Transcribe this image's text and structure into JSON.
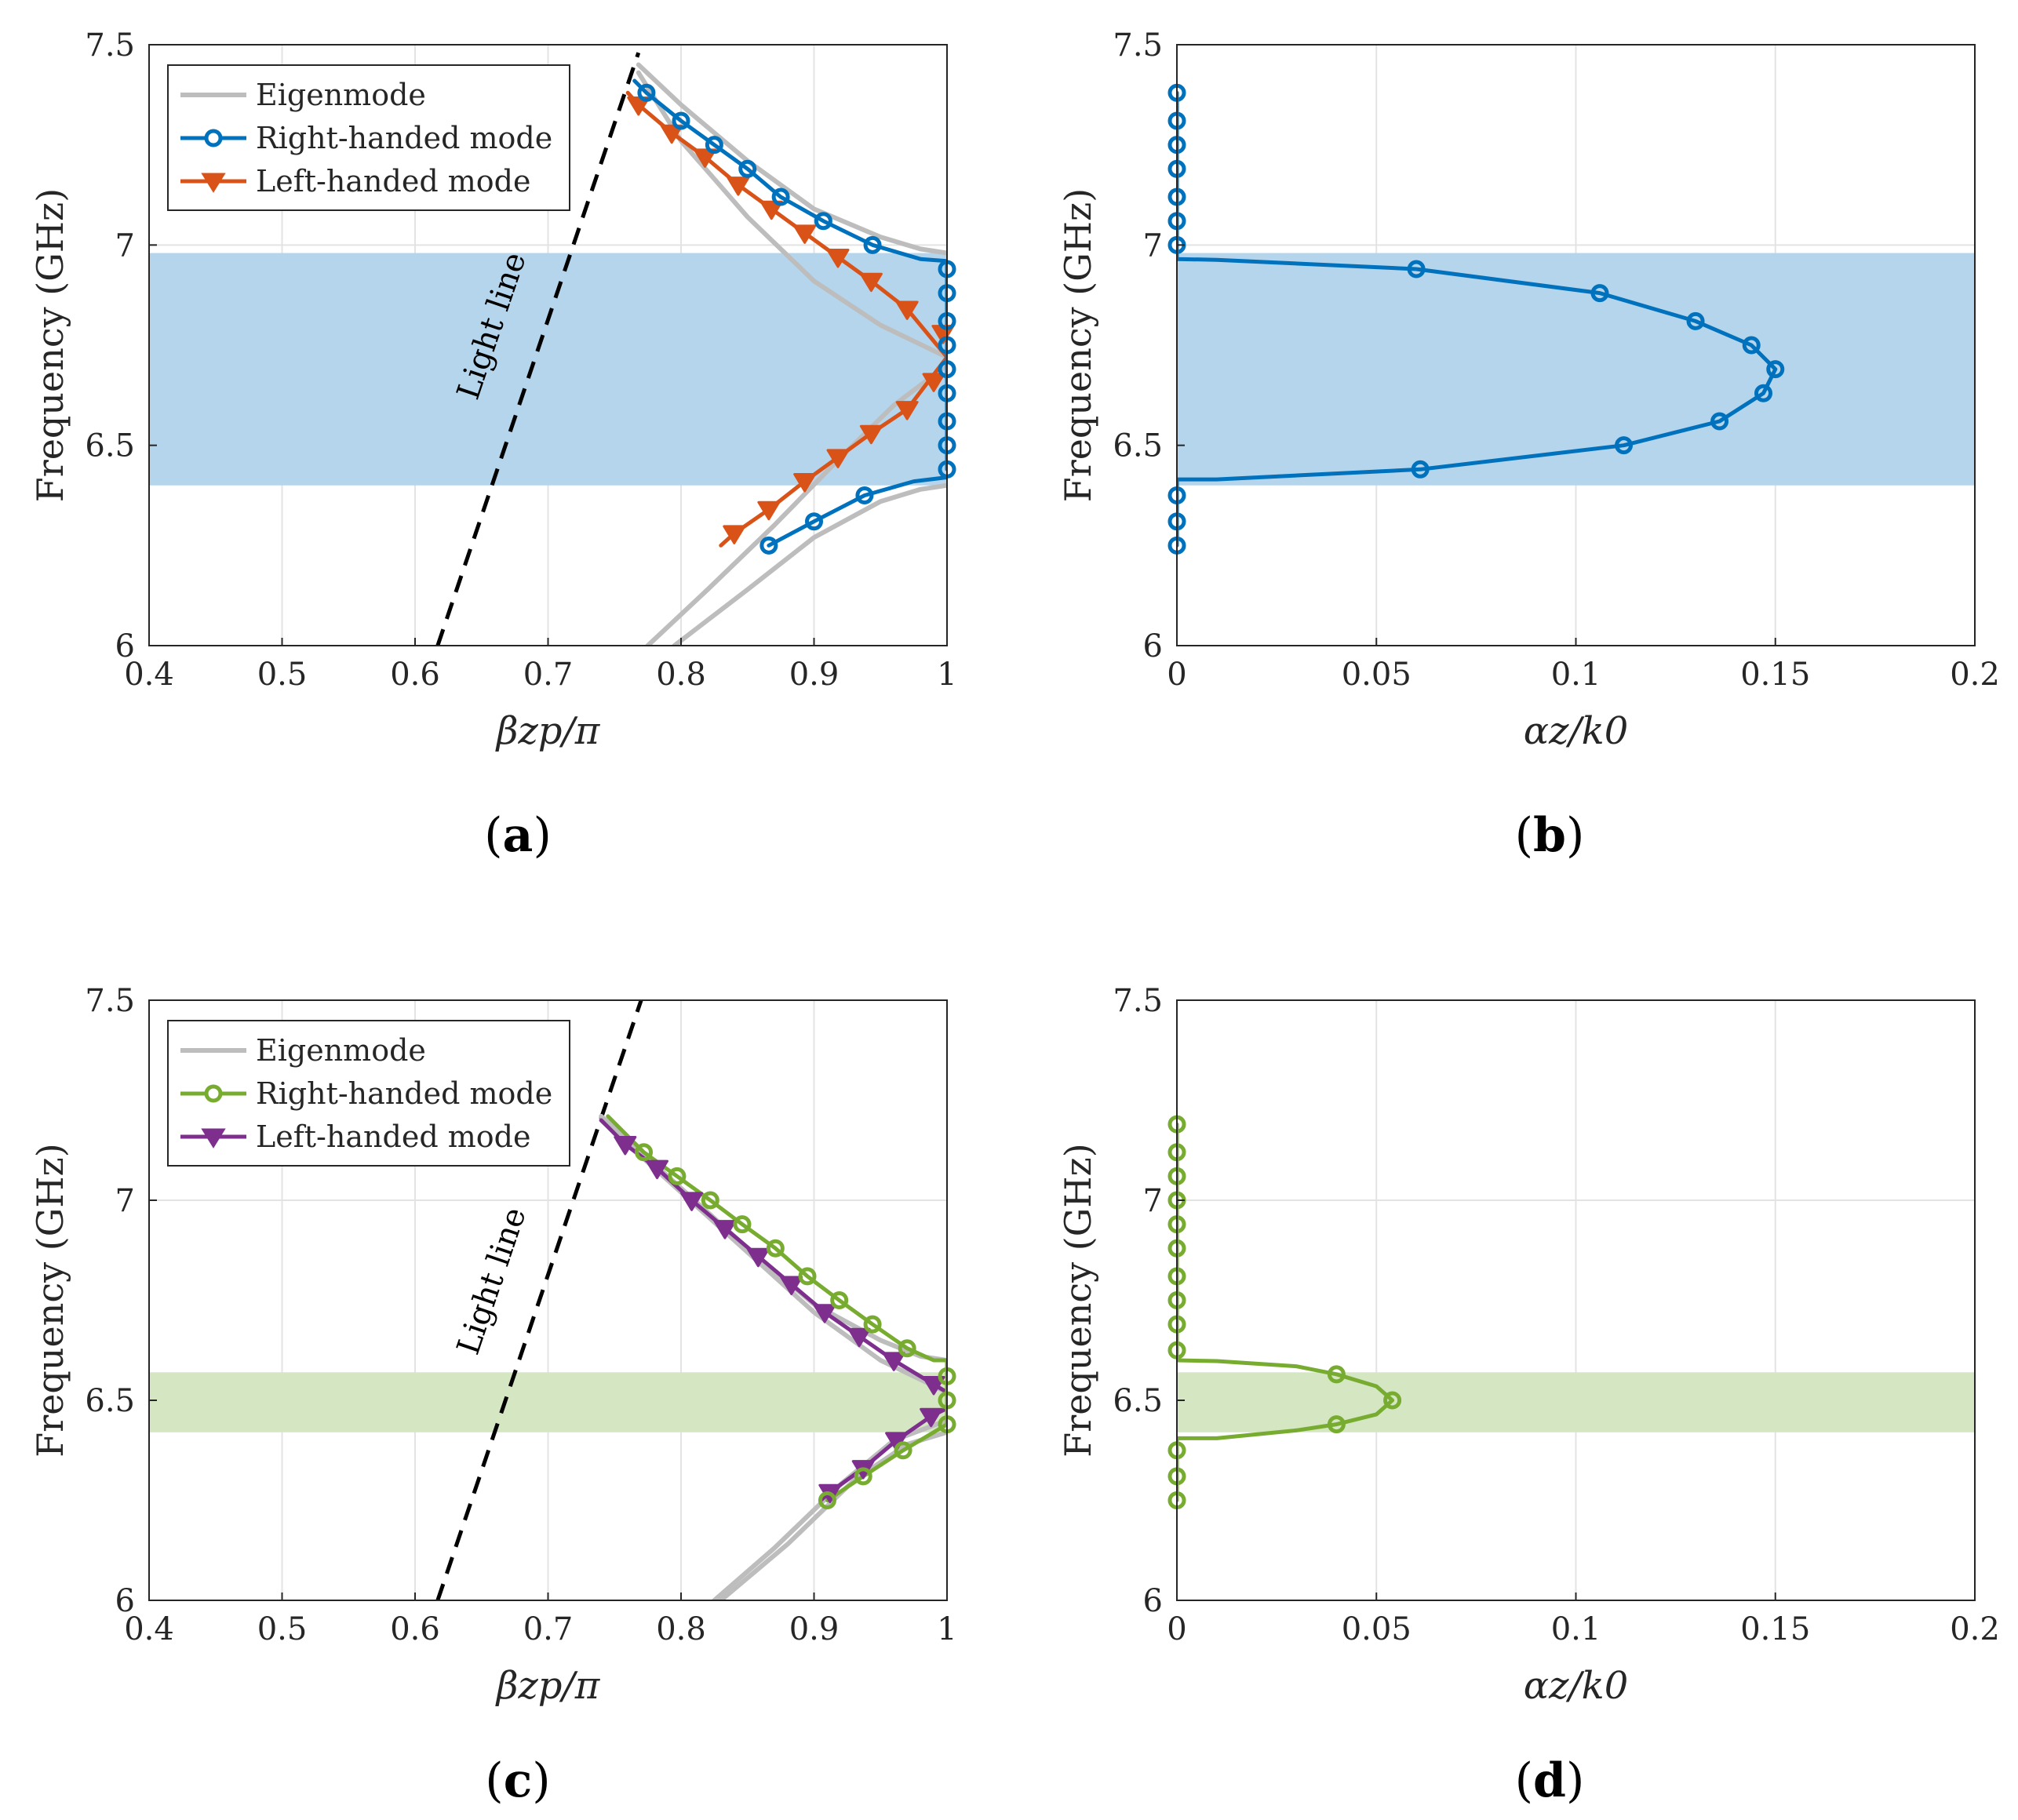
{
  "figure_captions": {
    "a": "a",
    "b": "b",
    "c": "c",
    "d": "d"
  },
  "chart_data": [
    {
      "id": "a",
      "type": "line",
      "xlabel": "βzp/π",
      "ylabel": "Frequency (GHz)",
      "xlim": [
        0.4,
        1.0
      ],
      "ylim": [
        6.0,
        7.5
      ],
      "xticks": [
        0.4,
        0.5,
        0.6,
        0.7,
        0.8,
        0.9,
        1.0
      ],
      "xtick_labels": [
        "0.4",
        "0.5",
        "0.6",
        "0.7",
        "0.8",
        "0.9",
        "1"
      ],
      "yticks": [
        6.0,
        6.5,
        7.0,
        7.5
      ],
      "ytick_labels": [
        "6",
        "6.5",
        "7",
        "7.5"
      ],
      "band": {
        "y0": 6.4,
        "y1": 6.98,
        "color": "#b4d5ec"
      },
      "light_line": {
        "points": [
          [
            0.617,
            6.0
          ],
          [
            0.768,
            7.48
          ]
        ],
        "label": "Light line"
      },
      "legend": {
        "position": "top-left",
        "entries": [
          {
            "name": "Eigenmode",
            "color": "#bdbdbd",
            "marker": "none"
          },
          {
            "name": "Right-handed mode",
            "color": "#0072bd",
            "marker": "circle"
          },
          {
            "name": "Left-handed mode",
            "color": "#d95319",
            "marker": "triangle-down"
          }
        ]
      },
      "series": [
        {
          "name": "Eigenmode",
          "role": "eigen",
          "color": "#bdbdbd",
          "x": [
            0.768,
            0.8,
            0.85,
            0.9,
            0.95,
            0.98,
            1.0
          ],
          "y": [
            7.45,
            7.35,
            7.21,
            7.09,
            7.02,
            6.99,
            6.98
          ]
        },
        {
          "name": "Eigenmode",
          "role": "eigen",
          "color": "#bdbdbd",
          "x": [
            0.768,
            0.8,
            0.85,
            0.9,
            0.95,
            1.0
          ],
          "y": [
            7.43,
            7.26,
            7.07,
            6.91,
            6.8,
            6.72
          ]
        },
        {
          "name": "Eigenmode",
          "role": "eigen",
          "color": "#bdbdbd",
          "x": [
            0.775,
            0.82,
            0.87,
            0.92,
            0.96,
            1.0
          ],
          "y": [
            6.0,
            6.14,
            6.3,
            6.47,
            6.6,
            6.7
          ]
        },
        {
          "name": "Eigenmode",
          "role": "eigen",
          "color": "#bdbdbd",
          "x": [
            0.795,
            0.85,
            0.9,
            0.95,
            0.98,
            1.0
          ],
          "y": [
            6.0,
            6.14,
            6.27,
            6.36,
            6.39,
            6.4
          ]
        },
        {
          "name": "Right-handed mode",
          "role": "rh",
          "color": "#0072bd",
          "marker": "circle",
          "x": [
            0.774,
            0.8,
            0.825,
            0.85,
            0.875,
            0.907,
            0.944,
            1.0,
            1.0,
            1.0,
            1.0,
            1.0,
            1.0,
            1.0,
            1.0,
            1.0
          ],
          "y": [
            7.38,
            7.31,
            7.25,
            7.19,
            7.12,
            7.06,
            7.0,
            6.94,
            6.88,
            6.81,
            6.75,
            6.69,
            6.63,
            6.56,
            6.5,
            6.44
          ],
          "line_x": [
            0.765,
            0.774,
            0.8,
            0.825,
            0.85,
            0.875,
            0.907,
            0.944,
            0.98,
            1.0,
            1.0
          ],
          "line_y": [
            7.41,
            7.38,
            7.31,
            7.25,
            7.19,
            7.12,
            7.06,
            7.0,
            6.965,
            6.96,
            6.44
          ]
        },
        {
          "name": "Right-handed mode",
          "role": "rh",
          "color": "#0072bd",
          "marker": "circle",
          "x": [
            0.866,
            0.9,
            0.938
          ],
          "y": [
            6.25,
            6.31,
            6.375
          ],
          "line_x": [
            0.866,
            0.9,
            0.938,
            0.975,
            1.0
          ],
          "line_y": [
            6.25,
            6.31,
            6.375,
            6.41,
            6.42
          ]
        },
        {
          "name": "Left-handed mode",
          "role": "lh",
          "color": "#d95319",
          "marker": "triangle-down",
          "x": [
            0.768,
            0.793,
            0.818,
            0.843,
            0.868,
            0.893,
            0.918,
            0.943,
            0.97,
            0.997
          ],
          "y": [
            7.35,
            7.28,
            7.22,
            7.15,
            7.09,
            7.03,
            6.97,
            6.91,
            6.84,
            6.78
          ],
          "line_x": [
            0.76,
            0.768,
            0.793,
            0.818,
            0.843,
            0.868,
            0.893,
            0.918,
            0.943,
            0.97,
            1.0
          ],
          "line_y": [
            7.38,
            7.35,
            7.28,
            7.22,
            7.15,
            7.09,
            7.03,
            6.97,
            6.91,
            6.84,
            6.72
          ]
        },
        {
          "name": "Left-handed mode",
          "role": "lh",
          "color": "#d95319",
          "marker": "triangle-down",
          "x": [
            0.84,
            0.866,
            0.893,
            0.918,
            0.943,
            0.97,
            0.99
          ],
          "y": [
            6.28,
            6.34,
            6.41,
            6.47,
            6.53,
            6.59,
            6.66
          ],
          "line_x": [
            0.83,
            0.84,
            0.866,
            0.893,
            0.918,
            0.943,
            0.97,
            1.0
          ],
          "line_y": [
            6.25,
            6.28,
            6.34,
            6.41,
            6.47,
            6.53,
            6.59,
            6.72
          ]
        }
      ]
    },
    {
      "id": "b",
      "type": "line",
      "xlabel": "αz/k0",
      "ylabel": "Frequency (GHz)",
      "xlim": [
        0,
        0.2
      ],
      "ylim": [
        6.0,
        7.5
      ],
      "xticks": [
        0,
        0.05,
        0.1,
        0.15,
        0.2
      ],
      "xtick_labels": [
        "0",
        "0.05",
        "0.1",
        "0.15",
        "0.2"
      ],
      "yticks": [
        6.0,
        6.5,
        7.0,
        7.5
      ],
      "ytick_labels": [
        "6",
        "6.5",
        "7",
        "7.5"
      ],
      "band": {
        "y0": 6.4,
        "y1": 6.98,
        "color": "#b4d5ec"
      },
      "series": [
        {
          "name": "Right-handed mode",
          "role": "rh",
          "color": "#0072bd",
          "marker": "circle",
          "x": [
            0,
            0,
            0,
            0,
            0,
            0,
            0,
            0.06,
            0.106,
            0.13,
            0.144,
            0.15,
            0.147,
            0.136,
            0.112,
            0.061,
            0,
            0,
            0
          ],
          "y": [
            7.38,
            7.31,
            7.25,
            7.19,
            7.12,
            7.06,
            7.0,
            6.94,
            6.88,
            6.81,
            6.75,
            6.69,
            6.63,
            6.56,
            6.5,
            6.44,
            6.375,
            6.31,
            6.25
          ],
          "line_x": [
            0,
            0,
            0.01,
            0.06,
            0.106,
            0.13,
            0.144,
            0.15,
            0.147,
            0.136,
            0.112,
            0.061,
            0.01,
            0,
            0
          ],
          "line_y": [
            7.38,
            6.965,
            6.963,
            6.94,
            6.88,
            6.81,
            6.75,
            6.69,
            6.63,
            6.56,
            6.5,
            6.44,
            6.415,
            6.415,
            6.25
          ]
        }
      ]
    },
    {
      "id": "c",
      "type": "line",
      "xlabel": "βzp/π",
      "ylabel": "Frequency (GHz)",
      "xlim": [
        0.4,
        1.0
      ],
      "ylim": [
        6.0,
        7.5
      ],
      "xticks": [
        0.4,
        0.5,
        0.6,
        0.7,
        0.8,
        0.9,
        1.0
      ],
      "xtick_labels": [
        "0.4",
        "0.5",
        "0.6",
        "0.7",
        "0.8",
        "0.9",
        "1"
      ],
      "yticks": [
        6.0,
        6.5,
        7.0,
        7.5
      ],
      "ytick_labels": [
        "6",
        "6.5",
        "7",
        "7.5"
      ],
      "band": {
        "y0": 6.42,
        "y1": 6.57,
        "color": "#d5e6c2"
      },
      "light_line": {
        "points": [
          [
            0.617,
            6.0
          ],
          [
            0.77,
            7.5
          ]
        ],
        "label": "Light line"
      },
      "legend": {
        "position": "top-left",
        "entries": [
          {
            "name": "Eigenmode",
            "color": "#bdbdbd",
            "marker": "none"
          },
          {
            "name": "Right-handed mode",
            "color": "#77ac30",
            "marker": "circle"
          },
          {
            "name": "Left-handed mode",
            "color": "#7e2f8e",
            "marker": "triangle-down"
          }
        ]
      },
      "series": [
        {
          "name": "Eigenmode",
          "role": "eigen",
          "color": "#bdbdbd",
          "x": [
            0.74,
            0.8,
            0.85,
            0.9,
            0.95,
            0.98,
            1.0
          ],
          "y": [
            7.21,
            7.03,
            6.88,
            6.74,
            6.65,
            6.61,
            6.6
          ]
        },
        {
          "name": "Eigenmode",
          "role": "eigen",
          "color": "#bdbdbd",
          "x": [
            0.74,
            0.8,
            0.85,
            0.9,
            0.95,
            1.0
          ],
          "y": [
            7.2,
            7.02,
            6.87,
            6.72,
            6.6,
            6.52
          ]
        },
        {
          "name": "Eigenmode",
          "role": "eigen",
          "color": "#bdbdbd",
          "x": [
            0.825,
            0.87,
            0.92,
            0.96,
            1.0
          ],
          "y": [
            6.0,
            6.13,
            6.29,
            6.4,
            6.45
          ]
        },
        {
          "name": "Eigenmode",
          "role": "eigen",
          "color": "#bdbdbd",
          "x": [
            0.83,
            0.88,
            0.93,
            0.97,
            1.0
          ],
          "y": [
            6.0,
            6.14,
            6.3,
            6.39,
            6.42
          ]
        },
        {
          "name": "Left-handed mode",
          "role": "lh",
          "color": "#7e2f8e",
          "marker": "triangle-down",
          "x": [
            0.758,
            0.782,
            0.808,
            0.833,
            0.858,
            0.883,
            0.908,
            0.934,
            0.96,
            0.99
          ],
          "y": [
            7.14,
            7.08,
            7.0,
            6.93,
            6.86,
            6.79,
            6.72,
            6.66,
            6.6,
            6.54
          ],
          "line_x": [
            0.74,
            0.758,
            0.782,
            0.808,
            0.833,
            0.858,
            0.883,
            0.908,
            0.934,
            0.96,
            0.99,
            1.0
          ],
          "line_y": [
            7.2,
            7.14,
            7.08,
            7.0,
            6.93,
            6.86,
            6.79,
            6.72,
            6.66,
            6.6,
            6.54,
            6.52
          ]
        },
        {
          "name": "Left-handed mode",
          "role": "lh",
          "color": "#7e2f8e",
          "marker": "triangle-down",
          "x": [
            0.912,
            0.937,
            0.962,
            0.988
          ],
          "y": [
            6.27,
            6.33,
            6.4,
            6.46
          ],
          "line_x": [
            0.905,
            0.912,
            0.937,
            0.962,
            0.988,
            1.0
          ],
          "line_y": [
            6.25,
            6.27,
            6.33,
            6.4,
            6.46,
            6.48
          ]
        },
        {
          "name": "Right-handed mode",
          "role": "rh",
          "color": "#77ac30",
          "marker": "circle",
          "x": [
            0.772,
            0.797,
            0.822,
            0.846,
            0.871,
            0.895,
            0.919,
            0.944,
            0.97,
            1.0,
            1.0,
            1.0
          ],
          "y": [
            7.12,
            7.06,
            7.0,
            6.94,
            6.88,
            6.81,
            6.75,
            6.69,
            6.63,
            6.56,
            6.5,
            6.44
          ],
          "line_x": [
            0.745,
            0.772,
            0.797,
            0.822,
            0.846,
            0.871,
            0.895,
            0.919,
            0.944,
            0.97,
            0.99,
            1.0,
            1.0
          ],
          "line_y": [
            7.21,
            7.12,
            7.06,
            7.0,
            6.94,
            6.88,
            6.81,
            6.75,
            6.69,
            6.63,
            6.6,
            6.6,
            6.44
          ]
        },
        {
          "name": "Right-handed mode",
          "role": "rh",
          "color": "#77ac30",
          "marker": "circle",
          "x": [
            0.91,
            0.937,
            0.967
          ],
          "y": [
            6.25,
            6.31,
            6.375
          ],
          "line_x": [
            0.91,
            0.937,
            0.967,
            0.99,
            1.0
          ],
          "line_y": [
            6.25,
            6.31,
            6.375,
            6.42,
            6.44
          ]
        }
      ]
    },
    {
      "id": "d",
      "type": "line",
      "xlabel": "αz/k0",
      "ylabel": "Frequency (GHz)",
      "xlim": [
        0,
        0.2
      ],
      "ylim": [
        6.0,
        7.5
      ],
      "xticks": [
        0,
        0.05,
        0.1,
        0.15,
        0.2
      ],
      "xtick_labels": [
        "0",
        "0.05",
        "0.1",
        "0.15",
        "0.2"
      ],
      "yticks": [
        6.0,
        6.5,
        7.0,
        7.5
      ],
      "ytick_labels": [
        "6",
        "6.5",
        "7",
        "7.5"
      ],
      "band": {
        "y0": 6.42,
        "y1": 6.57,
        "color": "#d5e6c2"
      },
      "series": [
        {
          "name": "Right-handed mode",
          "role": "rh",
          "color": "#77ac30",
          "marker": "circle",
          "x": [
            0,
            0,
            0,
            0,
            0,
            0,
            0,
            0,
            0,
            0,
            0.04,
            0.054,
            0.04,
            0,
            0,
            0
          ],
          "y": [
            7.19,
            7.12,
            7.06,
            7.0,
            6.94,
            6.88,
            6.81,
            6.75,
            6.69,
            6.625,
            6.565,
            6.5,
            6.44,
            6.375,
            6.31,
            6.25
          ],
          "line_x": [
            0,
            0,
            0.01,
            0.03,
            0.04,
            0.05,
            0.054,
            0.05,
            0.04,
            0.03,
            0.01,
            0,
            0
          ],
          "line_y": [
            7.19,
            6.6,
            6.598,
            6.585,
            6.565,
            6.535,
            6.5,
            6.465,
            6.44,
            6.425,
            6.405,
            6.405,
            6.25
          ]
        }
      ]
    }
  ]
}
